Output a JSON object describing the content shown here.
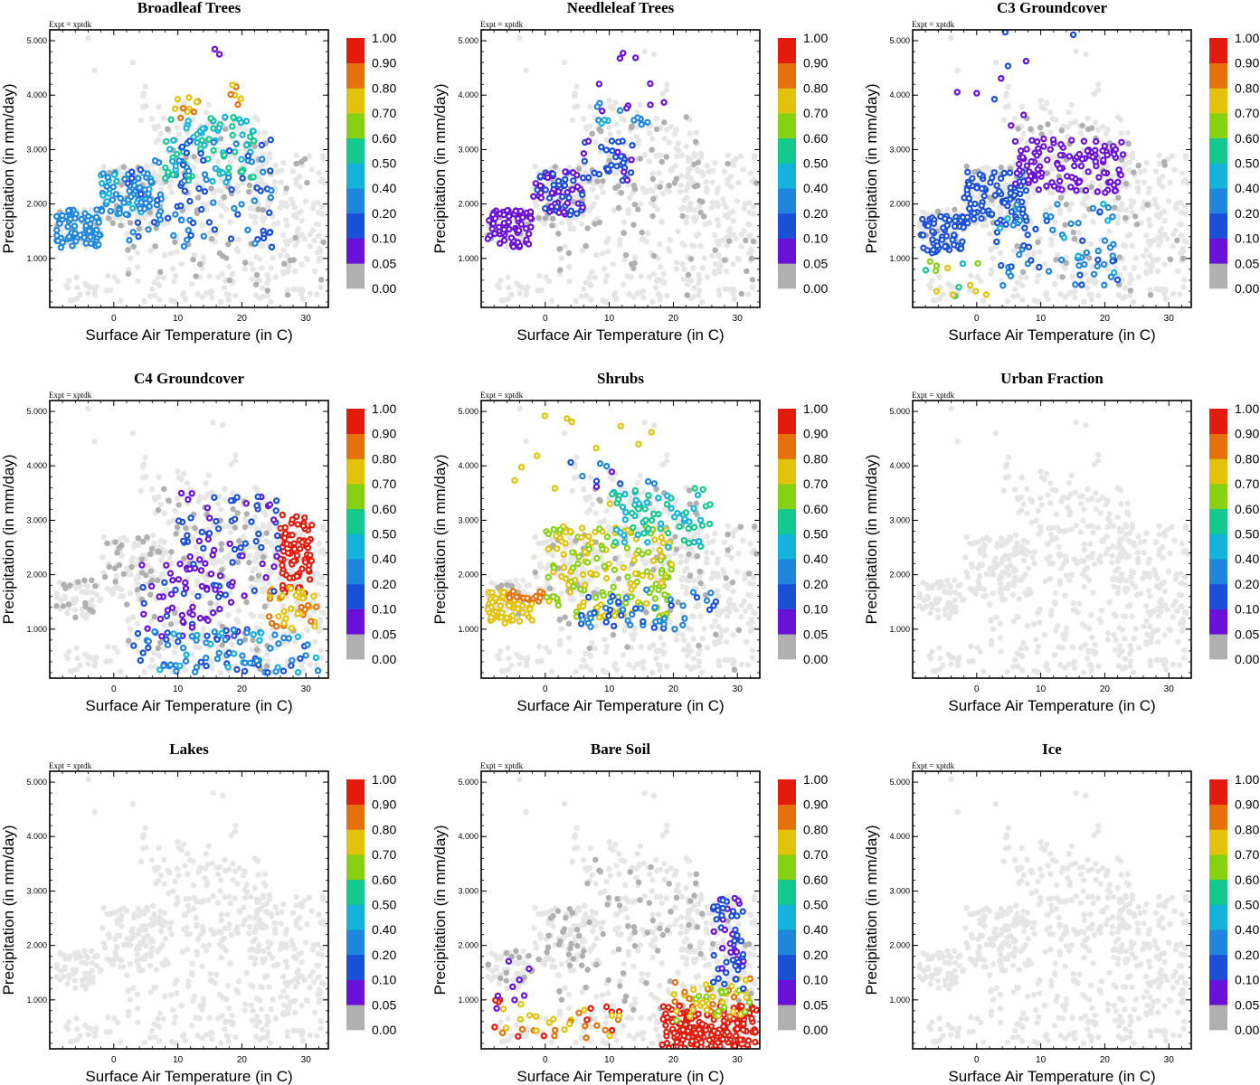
{
  "chart_data": {
    "type": "scatter",
    "layout": "3x3 grid of panels",
    "experiment_label": "Expt = xptdk",
    "xlabel": "Surface Air Temperature (in C)",
    "ylabel": "Precipitation (in mm/day)",
    "xlim": [
      -10,
      33.5
    ],
    "ylim": [
      0.1,
      5.2
    ],
    "x_ticks": [
      0,
      10,
      20,
      30
    ],
    "x_tick_labels": [
      "0",
      "10",
      "20",
      "30"
    ],
    "y_ticks": [
      1.0,
      2.0,
      3.0,
      4.0,
      5.0
    ],
    "y_tick_labels": [
      "1.000",
      "2.000",
      "3.000",
      "4.000",
      "5.000"
    ],
    "colorbar_levels": [
      0.0,
      0.05,
      0.1,
      0.2,
      0.4,
      0.5,
      0.6,
      0.7,
      0.8,
      0.9,
      1.0
    ],
    "colorbar_labels": [
      "0.00",
      "0.05",
      "0.10",
      "0.20",
      "0.40",
      "0.50",
      "0.60",
      "0.70",
      "0.80",
      "0.90",
      "1.00"
    ],
    "colorbar_colors": [
      "#b0b0b0",
      "#6a10d8",
      "#1a4fd8",
      "#1f86dd",
      "#13b3dc",
      "#13c98e",
      "#86d112",
      "#e2c20a",
      "#e5700c",
      "#e21b0c"
    ],
    "background_point_color": "#e6e6e6",
    "panels": [
      {
        "title": "Broadleaf Trees",
        "clusters": [
          {
            "x": [
              -9,
              -2
            ],
            "y": [
              1.2,
              1.9
            ],
            "n": 70,
            "v": [
              0.2,
              0.4
            ]
          },
          {
            "x": [
              -2,
              6
            ],
            "y": [
              1.8,
              2.6
            ],
            "n": 70,
            "v": [
              0.3,
              0.45
            ]
          },
          {
            "x": [
              2,
              12
            ],
            "y": [
              1.3,
              2.8
            ],
            "n": 45,
            "v": [
              0.1,
              0.3
            ]
          },
          {
            "x": [
              8,
              22
            ],
            "y": [
              2.4,
              3.6
            ],
            "n": 80,
            "v": [
              0.4,
              0.6
            ]
          },
          {
            "x": [
              10,
              25
            ],
            "y": [
              1.2,
              3.2
            ],
            "n": 60,
            "v": [
              0.1,
              0.25
            ]
          },
          {
            "x": [
              9,
              14
            ],
            "y": [
              3.5,
              4.0
            ],
            "n": 10,
            "v": [
              0.7,
              0.85
            ]
          },
          {
            "x": [
              18,
              20
            ],
            "y": [
              3.8,
              4.2
            ],
            "n": 6,
            "v": [
              0.75,
              0.85
            ]
          },
          {
            "x": [
              15,
              18
            ],
            "y": [
              4.6,
              4.9
            ],
            "n": 2,
            "v": [
              0.05,
              0.1
            ]
          }
        ]
      },
      {
        "title": "Needleleaf Trees",
        "clusters": [
          {
            "x": [
              -9,
              -2
            ],
            "y": [
              1.2,
              1.9
            ],
            "n": 70,
            "v": [
              0.05,
              0.1
            ]
          },
          {
            "x": [
              -2,
              6
            ],
            "y": [
              1.8,
              2.6
            ],
            "n": 70,
            "v": [
              0.05,
              0.15
            ]
          },
          {
            "x": [
              6,
              14
            ],
            "y": [
              2.4,
              3.2
            ],
            "n": 35,
            "v": [
              0.08,
              0.2
            ]
          },
          {
            "x": [
              8,
              16
            ],
            "y": [
              3.4,
              3.9
            ],
            "n": 12,
            "v": [
              0.3,
              0.45
            ]
          },
          {
            "x": [
              3,
              20
            ],
            "y": [
              3.6,
              4.8
            ],
            "n": 10,
            "v": [
              0.05,
              0.1
            ]
          }
        ]
      },
      {
        "title": "C3 Groundcover",
        "clusters": [
          {
            "x": [
              -9,
              -2
            ],
            "y": [
              1.1,
              1.8
            ],
            "n": 60,
            "v": [
              0.1,
              0.2
            ]
          },
          {
            "x": [
              -2,
              8
            ],
            "y": [
              1.6,
              2.6
            ],
            "n": 80,
            "v": [
              0.1,
              0.2
            ]
          },
          {
            "x": [
              6,
              23
            ],
            "y": [
              2.2,
              3.2
            ],
            "n": 110,
            "v": [
              0.05,
              0.1
            ]
          },
          {
            "x": [
              3,
              22
            ],
            "y": [
              0.5,
              2.0
            ],
            "n": 70,
            "v": [
              0.1,
              0.5
            ]
          },
          {
            "x": [
              -8,
              2
            ],
            "y": [
              0.3,
              1.0
            ],
            "n": 14,
            "v": [
              0.4,
              0.8
            ]
          },
          {
            "x": [
              -4,
              17
            ],
            "y": [
              3.3,
              5.2
            ],
            "n": 10,
            "v": [
              0.05,
              0.15
            ]
          }
        ]
      },
      {
        "title": "C4 Groundcover",
        "clusters": [
          {
            "x": [
              26,
              31
            ],
            "y": [
              1.6,
              3.1
            ],
            "n": 80,
            "v": [
              0.9,
              1.0
            ]
          },
          {
            "x": [
              24,
              32
            ],
            "y": [
              1.0,
              1.8
            ],
            "n": 40,
            "v": [
              0.7,
              0.85
            ]
          },
          {
            "x": [
              10,
              26
            ],
            "y": [
              1.6,
              3.5
            ],
            "n": 70,
            "v": [
              0.05,
              0.2
            ]
          },
          {
            "x": [
              4,
              20
            ],
            "y": [
              0.8,
              2.2
            ],
            "n": 60,
            "v": [
              0.05,
              0.12
            ]
          },
          {
            "x": [
              3,
              32
            ],
            "y": [
              0.2,
              1.0
            ],
            "n": 90,
            "v": [
              0.1,
              0.45
            ]
          }
        ]
      },
      {
        "title": "Shrubs",
        "clusters": [
          {
            "x": [
              -9,
              -2
            ],
            "y": [
              1.1,
              1.7
            ],
            "n": 60,
            "v": [
              0.7,
              0.8
            ]
          },
          {
            "x": [
              -6,
              0
            ],
            "y": [
              1.5,
              1.7
            ],
            "n": 14,
            "v": [
              0.85,
              0.9
            ]
          },
          {
            "x": [
              0,
              20
            ],
            "y": [
              1.2,
              2.9
            ],
            "n": 180,
            "v": [
              0.65,
              0.75
            ]
          },
          {
            "x": [
              10,
              26
            ],
            "y": [
              2.5,
              3.6
            ],
            "n": 70,
            "v": [
              0.4,
              0.6
            ]
          },
          {
            "x": [
              5,
              27
            ],
            "y": [
              1.0,
              1.8
            ],
            "n": 50,
            "v": [
              0.1,
              0.4
            ]
          },
          {
            "x": [
              -5,
              18
            ],
            "y": [
              3.2,
              5.1
            ],
            "n": 12,
            "v": [
              0.7,
              0.75
            ]
          },
          {
            "x": [
              2,
              18
            ],
            "y": [
              3.6,
              4.1
            ],
            "n": 10,
            "v": [
              0.05,
              0.3
            ]
          }
        ]
      },
      {
        "title": "Urban Fraction",
        "clusters": []
      },
      {
        "title": "Lakes",
        "clusters": []
      },
      {
        "title": "Bare Soil",
        "clusters": [
          {
            "x": [
              18,
              33
            ],
            "y": [
              0.1,
              0.9
            ],
            "n": 190,
            "v": [
              0.9,
              1.0
            ]
          },
          {
            "x": [
              20,
              32
            ],
            "y": [
              0.6,
              1.4
            ],
            "n": 60,
            "v": [
              0.6,
              0.85
            ]
          },
          {
            "x": [
              26,
              31
            ],
            "y": [
              1.2,
              2.9
            ],
            "n": 60,
            "v": [
              0.05,
              0.2
            ]
          },
          {
            "x": [
              -8,
              12
            ],
            "y": [
              0.3,
              1.0
            ],
            "n": 40,
            "v": [
              0.7,
              1.0
            ]
          },
          {
            "x": [
              -9,
              -2
            ],
            "y": [
              0.8,
              1.8
            ],
            "n": 8,
            "v": [
              0.05,
              0.1
            ]
          }
        ]
      },
      {
        "title": "Ice",
        "clusters": []
      }
    ]
  }
}
